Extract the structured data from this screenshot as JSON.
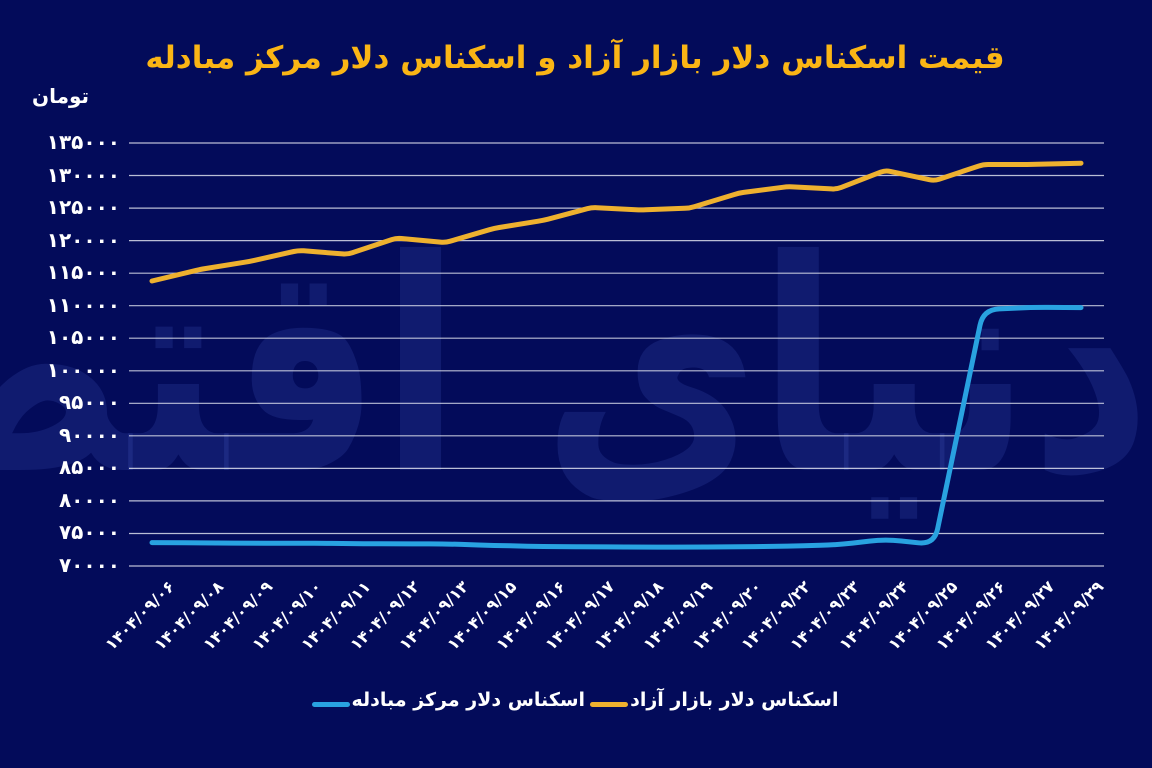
{
  "page": {
    "background": "#030b5a",
    "text_color": "#ffffff"
  },
  "watermark": {
    "text": "دنیای اقتصاد"
  },
  "chart_data": {
    "type": "line",
    "title": "قیمت اسکناس دلار بازار آزاد و اسکناس دلار مرکز مبادله",
    "title_color": "#fab515",
    "unit_label": "تومان",
    "xlabel": "",
    "ylabel": "تومان",
    "ylim": [
      70000,
      135000
    ],
    "ytick_step": 5000,
    "ytick_labels": [
      "۱۳۵۰۰۰",
      "۱۳۰۰۰۰",
      "۱۲۵۰۰۰",
      "۱۲۰۰۰۰",
      "۱۱۵۰۰۰",
      "۱۱۰۰۰۰",
      "۱۰۵۰۰۰",
      "۱۰۰۰۰۰",
      "۹۵۰۰۰",
      "۹۰۰۰۰",
      "۸۵۰۰۰",
      "۸۰۰۰۰",
      "۷۵۰۰۰",
      "۷۰۰۰۰"
    ],
    "grid": "horizontal",
    "gridline_color": "#e8ebf4",
    "legend_position": "bottom",
    "categories": [
      "۱۴۰۴/۰۹/۰۶",
      "۱۴۰۴/۰۹/۰۸",
      "۱۴۰۴/۰۹/۰۹",
      "۱۴۰۴/۰۹/۱۰",
      "۱۴۰۴/۰۹/۱۱",
      "۱۴۰۴/۰۹/۱۲",
      "۱۴۰۴/۰۹/۱۳",
      "۱۴۰۴/۰۹/۱۵",
      "۱۴۰۴/۰۹/۱۶",
      "۱۴۰۴/۰۹/۱۷",
      "۱۴۰۴/۰۹/۱۸",
      "۱۴۰۴/۰۹/۱۹",
      "۱۴۰۴/۰۹/۲۰",
      "۱۴۰۴/۰۹/۲۲",
      "۱۴۰۴/۰۹/۲۳",
      "۱۴۰۴/۰۹/۲۴",
      "۱۴۰۴/۰۹/۲۵",
      "۱۴۰۴/۰۹/۲۶",
      "۱۴۰۴/۰۹/۲۷",
      "۱۴۰۴/۰۹/۲۹"
    ],
    "series": [
      {
        "name": "اسکناس دلار بازار آزاد",
        "color": "#eeb12f",
        "values": [
          113800,
          115600,
          116800,
          118500,
          117900,
          120400,
          119700,
          121900,
          123100,
          125100,
          124700,
          125000,
          127300,
          128300,
          127900,
          130800,
          129200,
          131700,
          131700,
          131900
        ]
      },
      {
        "name": "اسکناس دلار مرکز مبادله",
        "color": "#29a2e0",
        "values": [
          73600,
          73550,
          73500,
          73500,
          73450,
          73400,
          73400,
          73150,
          73000,
          72950,
          72900,
          72900,
          72950,
          73050,
          73250,
          74100,
          73300,
          109400,
          109750,
          109700
        ]
      }
    ]
  },
  "legend": {
    "items": [
      {
        "label": "اسکناس دلار مرکز مبادله",
        "color": "#29a2e0"
      },
      {
        "label": "اسکناس دلار بازار آزاد",
        "color": "#eeb12f"
      }
    ]
  }
}
